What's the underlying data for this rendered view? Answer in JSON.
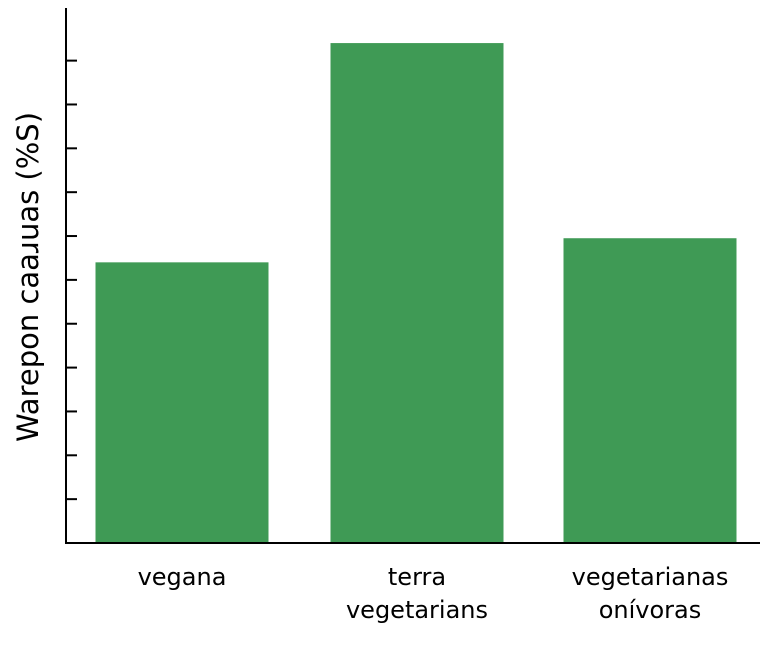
{
  "chart_data": {
    "type": "bar",
    "title": "",
    "xlabel": "",
    "ylabel": "Warepon caaɹuas (%S)",
    "categories": [
      [
        "vegana"
      ],
      [
        "terra",
        "vegetarians"
      ],
      [
        "vegetarianas",
        "onívoras"
      ]
    ],
    "values": [
      6.4,
      11.4,
      6.95
    ],
    "ylim": [
      0,
      12.2
    ],
    "yticks": [
      1,
      2,
      3,
      4,
      5,
      6,
      7,
      8,
      9,
      10,
      11
    ],
    "ytick_labels_shown": false,
    "grid": false,
    "legend": "none",
    "bar_color": "#3f9a55"
  }
}
